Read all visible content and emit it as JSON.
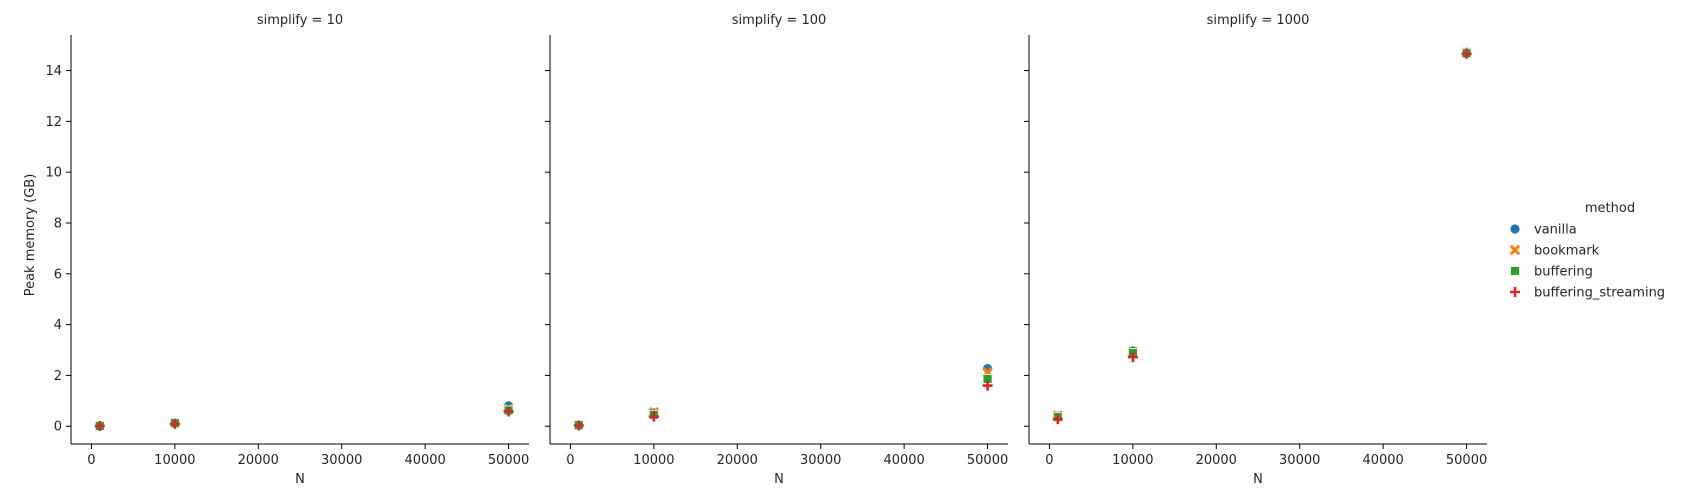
{
  "chart_data": {
    "type": "scatter",
    "facet_label": "simplify",
    "xlabel": "N",
    "ylabel": "Peak memory (GB)",
    "ylim": [
      -0.7,
      15.4
    ],
    "xlim": [
      -2450,
      52450
    ],
    "y_ticks": [
      0,
      2,
      4,
      6,
      8,
      10,
      12,
      14
    ],
    "x_ticks": [
      0,
      10000,
      20000,
      30000,
      40000,
      50000
    ],
    "shared_y": true,
    "grid": false,
    "legend": {
      "title": "method",
      "position": "right",
      "entries": [
        {
          "label": "vanilla",
          "color": "#1f77b4",
          "marker": "circle"
        },
        {
          "label": "bookmark",
          "color": "#ff7f0e",
          "marker": "x"
        },
        {
          "label": "buffering",
          "color": "#2ca02c",
          "marker": "square"
        },
        {
          "label": "buffering_streaming",
          "color": "#d62728",
          "marker": "plus"
        }
      ]
    },
    "panels": [
      {
        "title": "simplify = 10",
        "series": [
          {
            "name": "vanilla",
            "x": [
              1000,
              10000,
              50000
            ],
            "y": [
              0.02,
              0.14,
              0.8
            ]
          },
          {
            "name": "bookmark",
            "x": [
              1000,
              10000,
              50000
            ],
            "y": [
              0.02,
              0.13,
              0.68
            ]
          },
          {
            "name": "buffering",
            "x": [
              1000,
              10000,
              50000
            ],
            "y": [
              0.01,
              0.12,
              0.62
            ]
          },
          {
            "name": "buffering_streaming",
            "x": [
              1000,
              10000,
              50000
            ],
            "y": [
              0.01,
              0.09,
              0.58
            ]
          }
        ]
      },
      {
        "title": "simplify = 100",
        "series": [
          {
            "name": "vanilla",
            "x": [
              1000,
              10000,
              50000
            ],
            "y": [
              0.05,
              0.52,
              2.27
            ]
          },
          {
            "name": "bookmark",
            "x": [
              1000,
              10000,
              50000
            ],
            "y": [
              0.05,
              0.55,
              2.12
            ]
          },
          {
            "name": "buffering",
            "x": [
              1000,
              10000,
              50000
            ],
            "y": [
              0.04,
              0.45,
              1.86
            ]
          },
          {
            "name": "buffering_streaming",
            "x": [
              1000,
              10000,
              50000
            ],
            "y": [
              0.03,
              0.38,
              1.6
            ]
          }
        ]
      },
      {
        "title": "simplify = 1000",
        "series": [
          {
            "name": "vanilla",
            "x": [
              1000,
              10000,
              50000
            ],
            "y": [
              0.4,
              2.96,
              14.72
            ]
          },
          {
            "name": "bookmark",
            "x": [
              1000,
              10000,
              50000
            ],
            "y": [
              0.42,
              2.93,
              14.7
            ]
          },
          {
            "name": "buffering",
            "x": [
              1000,
              10000,
              50000
            ],
            "y": [
              0.36,
              2.88,
              14.68
            ]
          },
          {
            "name": "buffering_streaming",
            "x": [
              1000,
              10000,
              50000
            ],
            "y": [
              0.28,
              2.72,
              14.66
            ]
          }
        ]
      }
    ]
  }
}
